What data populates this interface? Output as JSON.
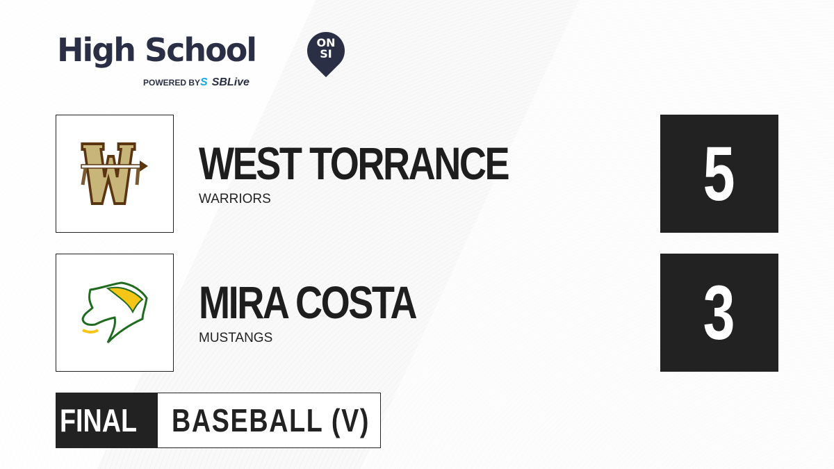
{
  "brand": {
    "title": "High School",
    "badge_line1": "ON",
    "badge_line2": "SI",
    "powered_by": "POWERED BY",
    "partner_s": "S",
    "partner": "SBLive",
    "colors": {
      "navy": "#2b2f45",
      "partner_blue": "#19a7e0"
    }
  },
  "teams": [
    {
      "name": "WEST TORRANCE",
      "mascot": "WARRIORS",
      "score": "5",
      "logo_icon": "warriors-w-arrow-logo",
      "colors": {
        "primary": "#c8b57a",
        "secondary": "#5a3510"
      }
    },
    {
      "name": "MIRA COSTA",
      "mascot": "MUSTANGS",
      "score": "3",
      "logo_icon": "mustang-head-logo",
      "colors": {
        "primary": "#f5c518",
        "secondary": "#1f6b1f"
      }
    }
  ],
  "footer": {
    "status": "FINAL",
    "sport": "BASEBALL (V)"
  }
}
